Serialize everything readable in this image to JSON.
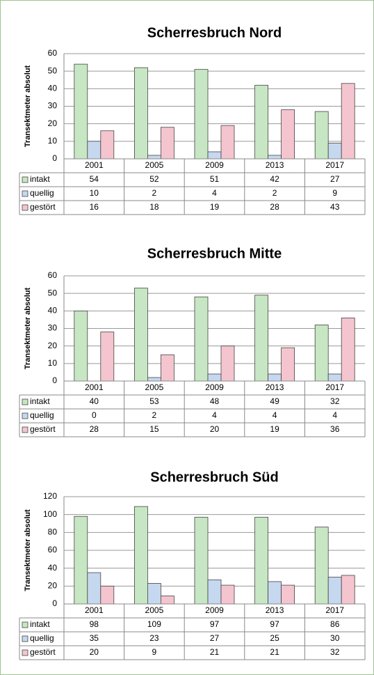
{
  "chart_data": [
    {
      "type": "bar",
      "title": "Scherresbruch Nord",
      "y_label": "Transektmeter absolut",
      "categories": [
        "2001",
        "2005",
        "2009",
        "2013",
        "2017"
      ],
      "series": [
        {
          "name": "intakt",
          "color": "#c7e6c3",
          "values": [
            54,
            52,
            51,
            42,
            27
          ]
        },
        {
          "name": "quellig",
          "color": "#c6d8ef",
          "values": [
            10,
            2,
            4,
            2,
            9
          ]
        },
        {
          "name": "gestört",
          "color": "#f4c5cf",
          "values": [
            16,
            18,
            19,
            28,
            43
          ]
        }
      ],
      "ylim": [
        0,
        60
      ],
      "yticks": [
        0,
        10,
        20,
        30,
        40,
        50,
        60
      ],
      "grid": true
    },
    {
      "type": "bar",
      "title": "Scherresbruch Mitte",
      "y_label": "Transektmeter absolut",
      "categories": [
        "2001",
        "2005",
        "2009",
        "2013",
        "2017"
      ],
      "series": [
        {
          "name": "intakt",
          "color": "#c7e6c3",
          "values": [
            40,
            53,
            48,
            49,
            32
          ]
        },
        {
          "name": "quellig",
          "color": "#c6d8ef",
          "values": [
            0,
            2,
            4,
            4,
            4
          ]
        },
        {
          "name": "gestört",
          "color": "#f4c5cf",
          "values": [
            28,
            15,
            20,
            19,
            36
          ]
        }
      ],
      "ylim": [
        0,
        60
      ],
      "yticks": [
        0,
        10,
        20,
        30,
        40,
        50,
        60
      ],
      "grid": true
    },
    {
      "type": "bar",
      "title": "Scherresbruch Süd",
      "y_label": "Transektmeter absolut",
      "categories": [
        "2001",
        "2005",
        "2009",
        "2013",
        "2017"
      ],
      "series": [
        {
          "name": "intakt",
          "color": "#c7e6c3",
          "values": [
            98,
            109,
            97,
            97,
            86
          ]
        },
        {
          "name": "quellig",
          "color": "#c6d8ef",
          "values": [
            35,
            23,
            27,
            25,
            30
          ]
        },
        {
          "name": "gestört",
          "color": "#f4c5cf",
          "values": [
            20,
            9,
            21,
            21,
            32
          ]
        }
      ],
      "ylim": [
        0,
        120
      ],
      "yticks": [
        0,
        20,
        40,
        60,
        80,
        100,
        120
      ],
      "grid": true
    }
  ]
}
